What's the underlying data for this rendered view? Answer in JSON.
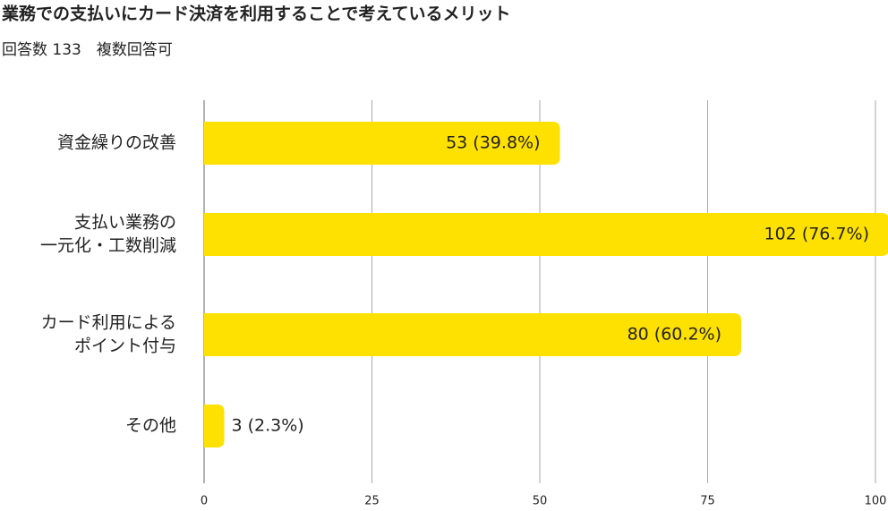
{
  "chart_data": {
    "type": "barh",
    "title": "業務での支払いにカード決済を利用することで考えているメリット",
    "subtitle": "回答数 133　複数回答可",
    "categories": [
      [
        "資金繰りの改善"
      ],
      [
        "支払い業務の",
        "一元化・工数削減"
      ],
      [
        "カード利用による",
        "ポイント付与"
      ],
      [
        "その他"
      ]
    ],
    "values": [
      53,
      102,
      80,
      3
    ],
    "value_labels": [
      "53 (39.8%)",
      "102 (76.7%)",
      "80 (60.2%)",
      "3 (2.3%)"
    ],
    "color": "#ffe100",
    "xlim": [
      0,
      100
    ],
    "xticks": [
      0,
      25,
      50,
      75,
      100
    ],
    "grid": true
  }
}
